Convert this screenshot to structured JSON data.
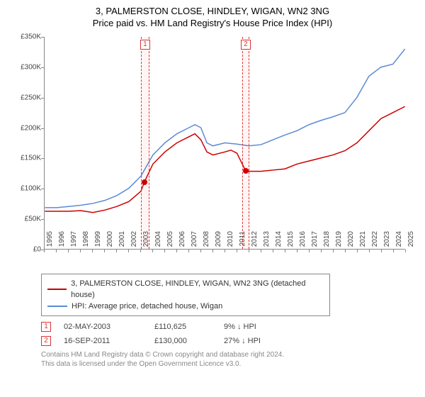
{
  "title_line1": "3, PALMERSTON CLOSE, HINDLEY, WIGAN, WN2 3NG",
  "title_line2": "Price paid vs. HM Land Registry's House Price Index (HPI)",
  "chart": {
    "type": "line",
    "background_color": "#ffffff",
    "grid_color": "#e0e0e0",
    "axis_color": "#888888",
    "label_fontsize": 10,
    "ylim": [
      0,
      350000
    ],
    "ytick_step": 50000,
    "ytick_labels": [
      "£0",
      "£50K",
      "£100K",
      "£150K",
      "£200K",
      "£250K",
      "£300K",
      "£350K"
    ],
    "xlim": [
      1995,
      2025
    ],
    "xtick_years": [
      1995,
      1996,
      1997,
      1998,
      1999,
      2000,
      2001,
      2002,
      2003,
      2004,
      2005,
      2006,
      2007,
      2008,
      2009,
      2010,
      2011,
      2012,
      2013,
      2014,
      2015,
      2016,
      2017,
      2018,
      2019,
      2020,
      2021,
      2022,
      2023,
      2024,
      2025
    ],
    "series": [
      {
        "name": "price_paid",
        "color": "#cc0000",
        "line_width": 1.5,
        "xy": [
          [
            1995,
            62000
          ],
          [
            1996,
            62000
          ],
          [
            1997,
            62000
          ],
          [
            1998,
            63000
          ],
          [
            1999,
            60000
          ],
          [
            2000,
            64000
          ],
          [
            2001,
            70000
          ],
          [
            2002,
            78000
          ],
          [
            2003,
            95000
          ],
          [
            2003.3,
            110625
          ],
          [
            2004,
            140000
          ],
          [
            2005,
            160000
          ],
          [
            2006,
            175000
          ],
          [
            2007,
            185000
          ],
          [
            2007.5,
            190000
          ],
          [
            2008,
            180000
          ],
          [
            2008.5,
            160000
          ],
          [
            2009,
            155000
          ],
          [
            2010,
            160000
          ],
          [
            2010.5,
            163000
          ],
          [
            2011,
            158000
          ],
          [
            2011.7,
            130000
          ],
          [
            2012,
            128000
          ],
          [
            2013,
            128000
          ],
          [
            2014,
            130000
          ],
          [
            2015,
            132000
          ],
          [
            2016,
            140000
          ],
          [
            2017,
            145000
          ],
          [
            2018,
            150000
          ],
          [
            2019,
            155000
          ],
          [
            2020,
            162000
          ],
          [
            2021,
            175000
          ],
          [
            2022,
            195000
          ],
          [
            2023,
            215000
          ],
          [
            2024,
            225000
          ],
          [
            2025,
            235000
          ]
        ]
      },
      {
        "name": "hpi",
        "color": "#5b8bd4",
        "line_width": 1.5,
        "xy": [
          [
            1995,
            68000
          ],
          [
            1996,
            68000
          ],
          [
            1997,
            70000
          ],
          [
            1998,
            72000
          ],
          [
            1999,
            75000
          ],
          [
            2000,
            80000
          ],
          [
            2001,
            88000
          ],
          [
            2002,
            100000
          ],
          [
            2003,
            120000
          ],
          [
            2004,
            155000
          ],
          [
            2005,
            175000
          ],
          [
            2006,
            190000
          ],
          [
            2007,
            200000
          ],
          [
            2007.5,
            205000
          ],
          [
            2008,
            200000
          ],
          [
            2008.5,
            175000
          ],
          [
            2009,
            170000
          ],
          [
            2010,
            175000
          ],
          [
            2011,
            173000
          ],
          [
            2012,
            170000
          ],
          [
            2013,
            172000
          ],
          [
            2014,
            180000
          ],
          [
            2015,
            188000
          ],
          [
            2016,
            195000
          ],
          [
            2017,
            205000
          ],
          [
            2018,
            212000
          ],
          [
            2019,
            218000
          ],
          [
            2020,
            225000
          ],
          [
            2021,
            250000
          ],
          [
            2022,
            285000
          ],
          [
            2023,
            300000
          ],
          [
            2024,
            305000
          ],
          [
            2025,
            330000
          ]
        ]
      }
    ],
    "shaded_regions": [
      {
        "x_start": 2003.0,
        "x_end": 2003.7,
        "label": "1"
      },
      {
        "x_start": 2011.4,
        "x_end": 2012.0,
        "label": "2"
      }
    ],
    "sale_markers": [
      {
        "x": 2003.3,
        "y": 110625,
        "color": "#cc0000"
      },
      {
        "x": 2011.7,
        "y": 130000,
        "color": "#cc0000"
      }
    ]
  },
  "legend": {
    "items": [
      {
        "color": "#cc0000",
        "label": "3, PALMERSTON CLOSE, HINDLEY, WIGAN, WN2 3NG (detached house)"
      },
      {
        "color": "#5b8bd4",
        "label": "HPI: Average price, detached house, Wigan"
      }
    ]
  },
  "events": [
    {
      "num": "1",
      "date": "02-MAY-2003",
      "price": "£110,625",
      "diff": "9% ↓ HPI"
    },
    {
      "num": "2",
      "date": "16-SEP-2011",
      "price": "£130,000",
      "diff": "27% ↓ HPI"
    }
  ],
  "footer_line1": "Contains HM Land Registry data © Crown copyright and database right 2024.",
  "footer_line2": "This data is licensed under the Open Government Licence v3.0."
}
